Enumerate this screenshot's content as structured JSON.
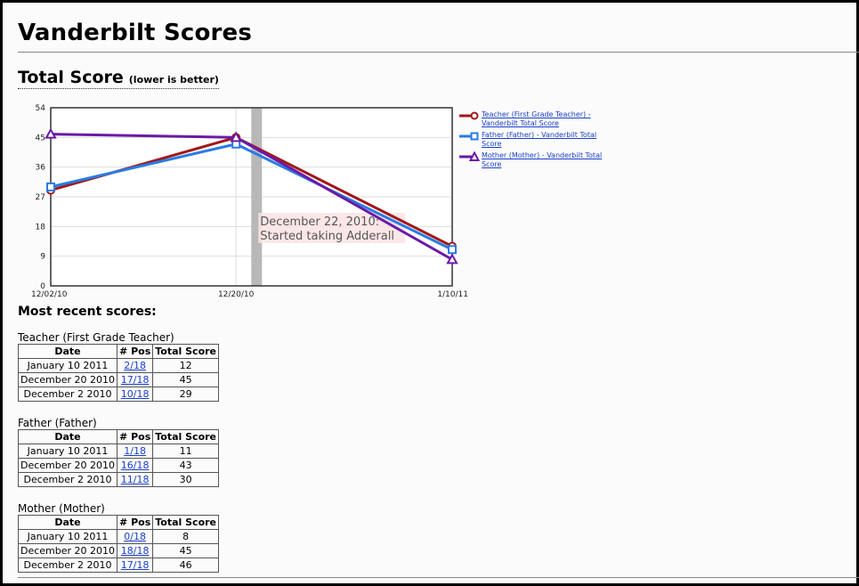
{
  "page": {
    "title": "Vanderbilt Scores",
    "section_title": "Total Score",
    "section_subtitle": "(lower is better)",
    "recent_title": "Most recent scores:"
  },
  "colors": {
    "teacher": "#a01818",
    "father": "#2a7be4",
    "mother": "#6a1aa6",
    "event_band": "#b8b8b8"
  },
  "chart_data": {
    "type": "line",
    "x": [
      "12/02/10",
      "12/20/10",
      "1/10/11"
    ],
    "x_tick_labels": [
      "12/02/10",
      "12/20/10",
      "1/10/11"
    ],
    "ylim": [
      0,
      54
    ],
    "y_ticks": [
      0,
      9,
      18,
      27,
      36,
      45,
      54
    ],
    "grid": true,
    "legend_position": "right",
    "series": [
      {
        "name": "Teacher (First Grade Teacher) - Vanderbilt Total Score",
        "marker": "circle",
        "values": [
          29,
          45,
          12
        ]
      },
      {
        "name": "Father (Father) - Vanderbilt Total Score",
        "marker": "square",
        "values": [
          30,
          43,
          11
        ]
      },
      {
        "name": "Mother (Mother) - Vanderbilt Total Score",
        "marker": "triangle",
        "values": [
          46,
          45,
          8
        ]
      }
    ],
    "annotation": {
      "date": "12/22/10",
      "line1": "December 22, 2010:",
      "line2": "Started taking Adderall"
    }
  },
  "legend": [
    {
      "key": "teacher",
      "line1": "Teacher (First Grade Teacher) -",
      "line2": "Vanderbilt Total Score"
    },
    {
      "key": "father",
      "line1": "Father (Father) - Vanderbilt Total",
      "line2": "Score"
    },
    {
      "key": "mother",
      "line1": "Mother (Mother) - Vanderbilt Total",
      "line2": "Score"
    }
  ],
  "table_headers": {
    "date": "Date",
    "pos": "# Pos",
    "total": "Total Score"
  },
  "groups": [
    {
      "title": "Teacher (First Grade Teacher)",
      "rows": [
        {
          "date": "January 10 2011",
          "pos": "2/18",
          "total": "12"
        },
        {
          "date": "December 20 2010",
          "pos": "17/18",
          "total": "45"
        },
        {
          "date": "December 2 2010",
          "pos": "10/18",
          "total": "29"
        }
      ]
    },
    {
      "title": "Father (Father)",
      "rows": [
        {
          "date": "January 10 2011",
          "pos": "1/18",
          "total": "11"
        },
        {
          "date": "December 20 2010",
          "pos": "16/18",
          "total": "43"
        },
        {
          "date": "December 2 2010",
          "pos": "11/18",
          "total": "30"
        }
      ]
    },
    {
      "title": "Mother (Mother)",
      "rows": [
        {
          "date": "January 10 2011",
          "pos": "0/18",
          "total": "8"
        },
        {
          "date": "December 20 2010",
          "pos": "18/18",
          "total": "45"
        },
        {
          "date": "December 2 2010",
          "pos": "17/18",
          "total": "46"
        }
      ]
    }
  ]
}
